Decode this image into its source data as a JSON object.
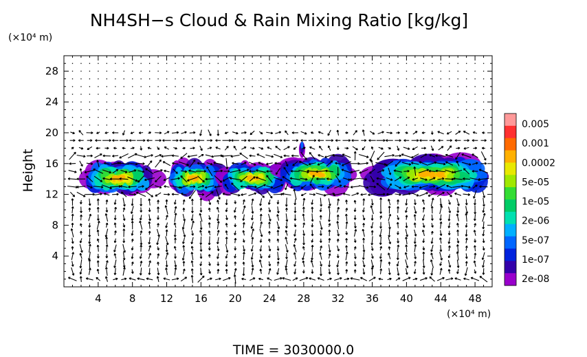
{
  "chart_data": {
    "type": "heatmap",
    "title": "NH4SH−s Cloud & Rain Mixing Ratio [kg/kg]",
    "xunit": "(×10⁴ m)",
    "yunit": "(×10⁴ m)",
    "ylabel": "Height",
    "xlabel": "",
    "xlim": [
      0,
      50
    ],
    "ylim": [
      0,
      30
    ],
    "xticks": [
      4,
      8,
      12,
      16,
      20,
      24,
      28,
      32,
      36,
      40,
      44,
      48
    ],
    "yticks": [
      4,
      8,
      12,
      16,
      20,
      24,
      28
    ],
    "xtick_labels": [
      "4",
      "8",
      "12",
      "16",
      "20",
      "24",
      "28",
      "32",
      "36",
      "40",
      "44",
      "48"
    ],
    "ytick_labels": [
      "4",
      "8",
      "12",
      "16",
      "20",
      "24",
      "28"
    ],
    "footer": "TIME  =  3030000.0",
    "colorbar": {
      "labels": [
        "0.005",
        "0.001",
        "0.0002",
        "5e-05",
        "1e-05",
        "2e-06",
        "5e-07",
        "1e-07",
        "2e-08"
      ],
      "colors": [
        "#ff9999",
        "#ff3030",
        "#ff6a00",
        "#ffb000",
        "#e8e800",
        "#a0e800",
        "#33dd33",
        "#00cc66",
        "#00e0b0",
        "#00b0ff",
        "#0066ff",
        "#0022dd",
        "#3300aa",
        "#9900cc"
      ]
    },
    "cloud_blobs": [
      {
        "x0": 2,
        "x1": 11,
        "y0": 12.2,
        "y1": 16.0,
        "peak": 0.0005
      },
      {
        "x0": 12,
        "x1": 18.5,
        "y0": 12.2,
        "y1": 16.0,
        "peak": 0.0002
      },
      {
        "x0": 18,
        "x1": 26,
        "y0": 12.5,
        "y1": 15.8,
        "peak": 0.0005
      },
      {
        "x0": 25,
        "x1": 34,
        "y0": 12.8,
        "y1": 16.5,
        "peak": 0.0001
      },
      {
        "x0": 36,
        "x1": 50,
        "y0": 12.5,
        "y1": 16.5,
        "peak": 0.0005
      }
    ]
  }
}
